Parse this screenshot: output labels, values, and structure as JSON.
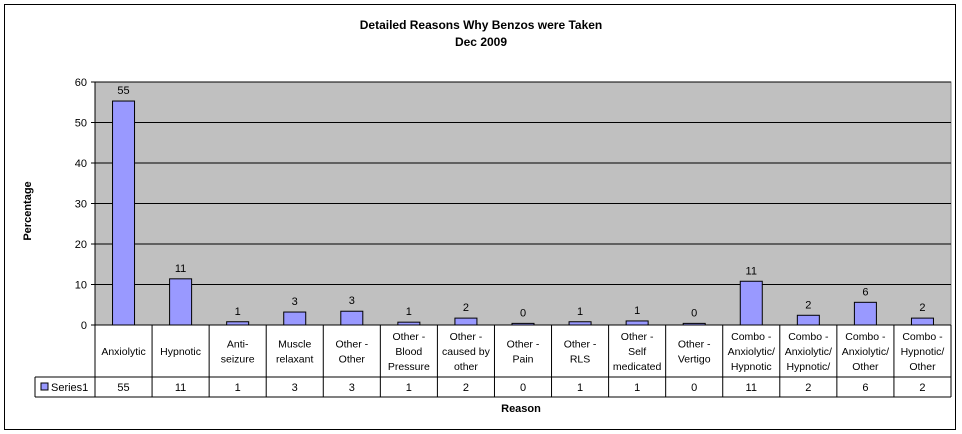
{
  "chart_data": {
    "type": "bar",
    "title": "Detailed Reasons Why Benzos were Taken",
    "subtitle": "Dec 2009",
    "xlabel": "Reason",
    "ylabel": "Percentage",
    "ylim": [
      0,
      60
    ],
    "yticks": [
      0,
      10,
      20,
      30,
      40,
      50,
      60
    ],
    "grid": true,
    "legend_position": "data-table",
    "categories": [
      "Anxiolytic",
      "Hypnotic",
      "Anti-\nseizure",
      "Muscle\nrelaxant",
      "Other -\nOther",
      "Other -\nBlood\nPressure",
      "Other -\ncaused by\nother",
      "Other -\nPain",
      "Other -\nRLS",
      "Other -\nSelf\nmedicated",
      "Other -\nVertigo",
      "Combo -\nAnxiolytic/\nHypnotic",
      "Combo -\nAnxiolytic/\nHypnotic/",
      "Combo -\nAnxiolytic/\nOther",
      "Combo -\nHypnotic/\nOther"
    ],
    "series": [
      {
        "name": "Series1",
        "values": [
          55.3,
          11.4,
          0.8,
          3.2,
          3.4,
          0.7,
          1.7,
          0.4,
          0.8,
          1.0,
          0.4,
          10.8,
          2.4,
          5.6,
          1.7
        ],
        "labels": [
          "55",
          "11",
          "1",
          "3",
          "3",
          "1",
          "2",
          "0",
          "1",
          "1",
          "0",
          "11",
          "2",
          "6",
          "2"
        ]
      }
    ],
    "colors": {
      "bar_fill": "#9999ff",
      "bar_stroke": "#000000",
      "plot_background": "#c0c0c0",
      "gridline": "#000000"
    }
  }
}
